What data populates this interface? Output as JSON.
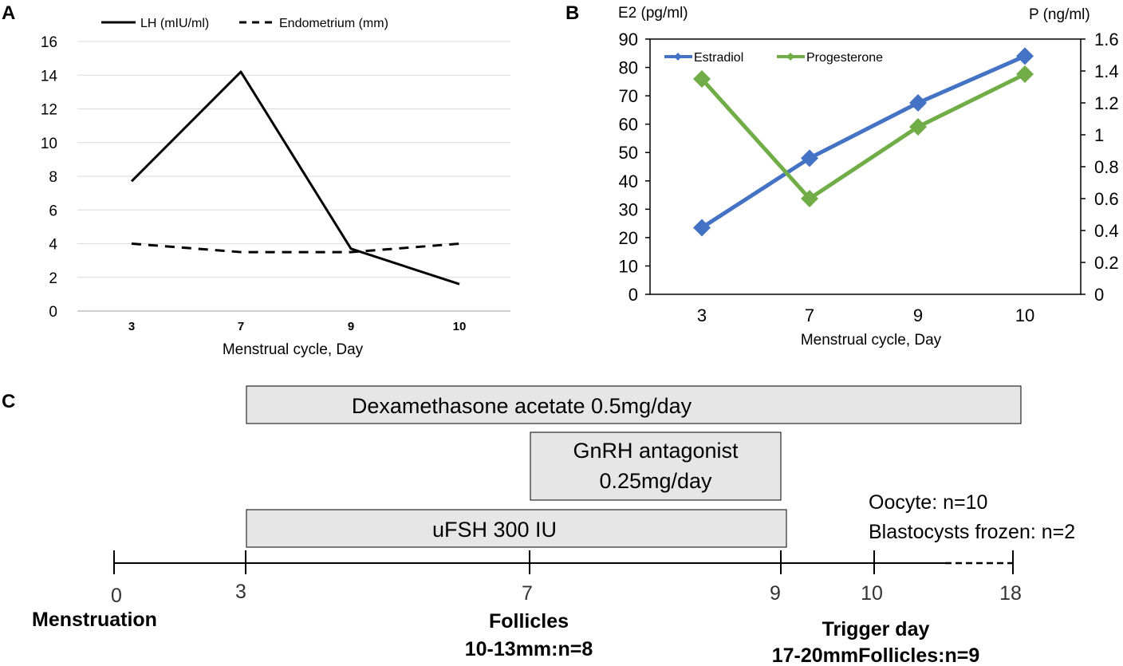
{
  "chart_data": [
    {
      "panel": "A",
      "type": "line",
      "categories": [
        "3",
        "7",
        "9",
        "10"
      ],
      "series": [
        {
          "name": "LH (mIU/ml)",
          "values": [
            7.7,
            14.2,
            3.7,
            1.6
          ],
          "style": "solid",
          "color": "#000000"
        },
        {
          "name": "Endometrium (mm)",
          "values": [
            4,
            3.5,
            3.5,
            4
          ],
          "style": "dashed",
          "color": "#000000"
        }
      ],
      "xlabel": "Menstrual cycle, Day",
      "ylim": [
        0,
        16
      ],
      "yticks": [
        "0",
        "2",
        "4",
        "6",
        "8",
        "10",
        "12",
        "14",
        "16"
      ],
      "grid": true,
      "legend_position": "top"
    },
    {
      "panel": "B",
      "type": "line",
      "categories": [
        "3",
        "7",
        "9",
        "10"
      ],
      "series": [
        {
          "name": "Estradiol",
          "axis": "left",
          "values": [
            23.5,
            48,
            67.5,
            84
          ],
          "color": "#4472C4"
        },
        {
          "name": "Progesterone",
          "axis": "right",
          "values": [
            1.35,
            0.6,
            1.05,
            1.38
          ],
          "color": "#70AD47"
        }
      ],
      "xlabel": "Menstrual cycle, Day",
      "ylabel_left": "E2 (pg/ml)",
      "ylabel_right": "P (ng/ml)",
      "ylim_left": [
        0,
        90
      ],
      "ylim_right": [
        0,
        1.6
      ],
      "yticks_left": [
        "0",
        "10",
        "20",
        "30",
        "40",
        "50",
        "60",
        "70",
        "80",
        "90"
      ],
      "yticks_right": [
        "0",
        "0.2",
        "0.4",
        "0.6",
        "0.8",
        "1",
        "1.2",
        "1.4",
        "1.6"
      ],
      "legend_position": "top-left"
    },
    {
      "panel": "C",
      "type": "timeline",
      "ticks": [
        "0",
        "3",
        "7",
        "9",
        "10",
        "18"
      ],
      "treatments": [
        {
          "label": "Dexamethasone acetate 0.5mg/day",
          "start": "3",
          "end": "18"
        },
        {
          "label_line1": "GnRH antagonist",
          "label_line2": "0.25mg/day",
          "start": "7",
          "end": "9"
        },
        {
          "label": "uFSH 300 IU",
          "start": "3",
          "end": "9"
        }
      ],
      "annotations": {
        "menstruation": "Menstruation",
        "follicles_title": "Follicles",
        "follicles_value": "10-13mm:n=8",
        "trigger_title": "Trigger day",
        "trigger_value": "17-20mmFollicles:n=9",
        "oocyte": "Oocyte: n=10",
        "blastocysts": "Blastocysts frozen: n=2"
      }
    }
  ],
  "panel_labels": {
    "a": "A",
    "b": "B",
    "c": "C"
  }
}
